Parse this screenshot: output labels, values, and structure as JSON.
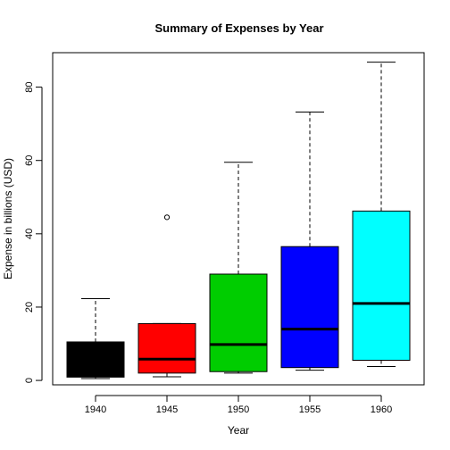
{
  "chart_data": {
    "type": "box",
    "title": "Summary of Expenses by Year",
    "xlabel": "Year",
    "ylabel": "Expense in billions (USD)",
    "ylim": [
      -1.2,
      89.4
    ],
    "yticks": [
      0,
      20,
      40,
      60,
      80
    ],
    "grid": false,
    "categories": [
      "1940",
      "1945",
      "1950",
      "1955",
      "1960"
    ],
    "boxes": [
      {
        "category": "1940",
        "color": "#000000",
        "min": 0.5,
        "q1": 0.9,
        "median": 1.5,
        "q3": 10.5,
        "max": 22.3,
        "outliers": []
      },
      {
        "category": "1945",
        "color": "#ff0000",
        "min": 1.0,
        "q1": 2.0,
        "median": 5.8,
        "q3": 15.5,
        "max": 15.5,
        "outliers": [
          44.5
        ]
      },
      {
        "category": "1950",
        "color": "#00cd00",
        "min": 2.0,
        "q1": 2.4,
        "median": 9.8,
        "q3": 29.0,
        "max": 59.5,
        "outliers": []
      },
      {
        "category": "1955",
        "color": "#0000ff",
        "min": 2.8,
        "q1": 3.5,
        "median": 14.0,
        "q3": 36.5,
        "max": 73.2,
        "outliers": []
      },
      {
        "category": "1960",
        "color": "#00ffff",
        "min": 3.8,
        "q1": 5.5,
        "median": 21.0,
        "q3": 46.2,
        "max": 86.8,
        "outliers": []
      }
    ]
  }
}
